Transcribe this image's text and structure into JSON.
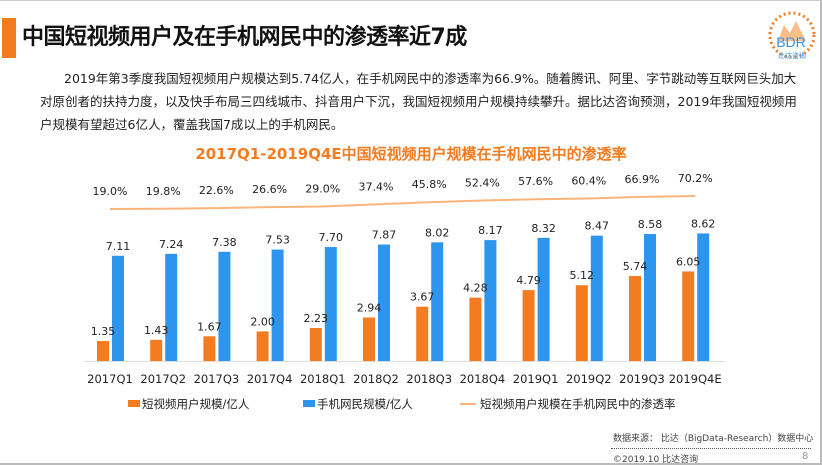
{
  "title": "中国短视频用户及在手机网民中的渗透率近7成",
  "logo": {
    "text": "BDR",
    "sub": "比达咨询"
  },
  "paragraph": "2019年第3季度我国短视频用户规模达到5.74亿人，在手机网民中的渗透率为66.9%。随着腾讯、阿里、字节跳动等互联网巨头加大对原创者的扶持力度，以及快手布局三四线城市、抖音用户下沉，我国短视频用户规模持续攀升。据比达咨询预测，2019年我国短视频用户规模有望超过6亿人，覆盖我国7成以上的手机网民。",
  "chart_data": {
    "type": "bar",
    "title": "2017Q1-2019Q4E中国短视频用户规模在手机网民中的渗透率",
    "categories": [
      "2017Q1",
      "2017Q2",
      "2017Q3",
      "2017Q4",
      "2018Q1",
      "2018Q2",
      "2018Q3",
      "2018Q4",
      "2019Q1",
      "2019Q2",
      "2019Q3",
      "2019Q4E"
    ],
    "series": [
      {
        "name": "短视频用户规模/亿人",
        "type": "bar",
        "color": "#f47c20",
        "values": [
          1.35,
          1.43,
          1.67,
          2.0,
          2.23,
          2.94,
          3.67,
          4.28,
          4.79,
          5.12,
          5.74,
          6.05
        ],
        "labels": [
          "1.35",
          "1.43",
          "1.67",
          "2.00",
          "2.23",
          "2.94",
          "3.67",
          "4.28",
          "4.79",
          "5.12",
          "5.74",
          "6.05"
        ]
      },
      {
        "name": "手机网民规模/亿人",
        "type": "bar",
        "color": "#2e95ee",
        "values": [
          7.11,
          7.24,
          7.38,
          7.53,
          7.7,
          7.87,
          8.02,
          8.17,
          8.32,
          8.47,
          8.58,
          8.62
        ],
        "labels": [
          "7.11",
          "7.24",
          "7.38",
          "7.53",
          "7.70",
          "7.87",
          "8.02",
          "8.17",
          "8.32",
          "8.47",
          "8.58",
          "8.62"
        ]
      },
      {
        "name": "短视频用户规模在手机网民中的渗透率",
        "type": "line",
        "color": "#f9b47c",
        "values": [
          19.0,
          19.8,
          22.6,
          26.6,
          29.0,
          37.4,
          45.8,
          52.4,
          57.6,
          60.4,
          66.9,
          70.2
        ],
        "labels": [
          "19.0%",
          "19.8%",
          "22.6%",
          "26.6%",
          "29.0%",
          "37.4%",
          "45.8%",
          "52.4%",
          "57.6%",
          "60.4%",
          "66.9%",
          "70.2%"
        ]
      }
    ],
    "legend": "bottom",
    "grid": false
  },
  "footer": {
    "source": "数据来源： 比达（BigData-Research）数据中心",
    "copyright": "©2019.10  比达咨询",
    "page": "8"
  }
}
